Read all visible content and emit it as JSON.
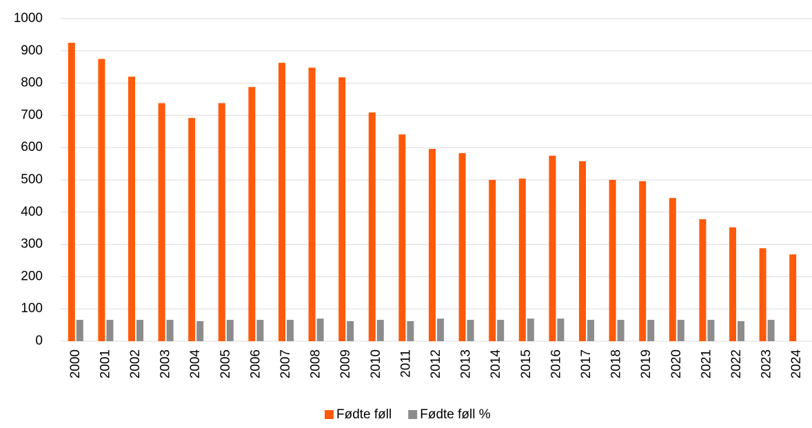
{
  "chart_data": {
    "type": "bar",
    "categories": [
      "2000",
      "2001",
      "2002",
      "2003",
      "2004",
      "2005",
      "2006",
      "2007",
      "2008",
      "2009",
      "2010",
      "2011",
      "2012",
      "2013",
      "2014",
      "2015",
      "2016",
      "2017",
      "2018",
      "2019",
      "2020",
      "2021",
      "2022",
      "2023",
      "2024"
    ],
    "series": [
      {
        "name": "Fødte føll",
        "color": "#ff5a0a",
        "values": [
          925,
          875,
          820,
          738,
          692,
          738,
          788,
          863,
          848,
          818,
          709,
          641,
          596,
          583,
          500,
          504,
          575,
          558,
          500,
          496,
          444,
          378,
          353,
          288,
          269
        ]
      },
      {
        "name": "Fødte føll %",
        "color": "#8c8c8c",
        "values": [
          66,
          66,
          66,
          66,
          62,
          66,
          66,
          66,
          70,
          62,
          66,
          62,
          70,
          66,
          66,
          70,
          70,
          66,
          66,
          66,
          66,
          66,
          62,
          66,
          null
        ]
      }
    ],
    "ylim": [
      0,
      1000
    ],
    "yticks": [
      0,
      100,
      200,
      300,
      400,
      500,
      600,
      700,
      800,
      900,
      1000
    ],
    "grid": true,
    "legend": "bottom"
  }
}
